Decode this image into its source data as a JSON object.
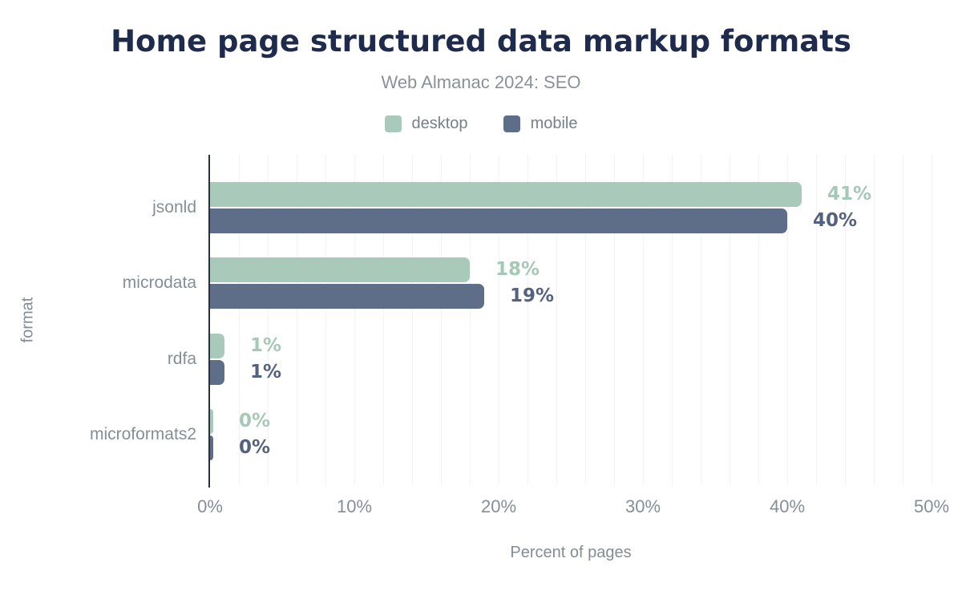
{
  "header": {
    "title": "Home page structured data markup formats",
    "subtitle": "Web Almanac 2024: SEO"
  },
  "chart_data": {
    "type": "bar",
    "orientation": "horizontal",
    "title": "Home page structured data markup formats",
    "subtitle": "Web Almanac 2024: SEO",
    "categories": [
      "jsonld",
      "microdata",
      "rdfa",
      "microformats2"
    ],
    "series": [
      {
        "name": "desktop",
        "color": "#a9caba",
        "label_color": "#a5c9b6",
        "values": [
          41,
          18,
          1,
          0
        ],
        "labels": [
          "41%",
          "18%",
          "1%",
          "0%"
        ]
      },
      {
        "name": "mobile",
        "color": "#5f6e88",
        "label_color": "#54627f",
        "values": [
          40,
          19,
          1,
          0
        ],
        "labels": [
          "40%",
          "19%",
          "1%",
          "0%"
        ]
      }
    ],
    "xlabel": "Percent of pages",
    "ylabel": "format",
    "xlim": [
      0,
      50
    ],
    "x_ticks": [
      "0%",
      "10%",
      "20%",
      "30%",
      "40%",
      "50%"
    ],
    "x_tick_values": [
      0,
      10,
      20,
      30,
      40,
      50
    ],
    "minor_grid_step": 2,
    "grid": true,
    "legend_position": "top",
    "colors": {
      "title": "#1e2b4c",
      "subtitle": "#8b9199",
      "axis_line": "#2b3039",
      "gridline": "#f1f3f4",
      "tick_text": "#868e96"
    }
  }
}
